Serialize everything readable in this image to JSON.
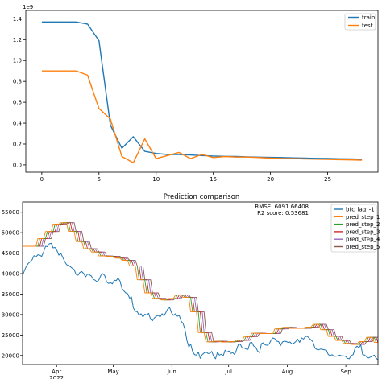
{
  "chart_data": [
    {
      "type": "line",
      "title": "",
      "xlabel": "",
      "ylabel": "",
      "offset_label": "1e9",
      "xlim": [
        -1.4,
        29.4
      ],
      "ylim": [
        -0.07,
        1.48
      ],
      "xticks": [
        0,
        5,
        10,
        15,
        20,
        25
      ],
      "xtick_labels": [
        "0",
        "5",
        "10",
        "15",
        "20",
        "25"
      ],
      "yticks": [
        0.0,
        0.2,
        0.4,
        0.6,
        0.8,
        1.0,
        1.2,
        1.4
      ],
      "ytick_labels": [
        "0.0",
        "0.2",
        "0.4",
        "0.6",
        "0.8",
        "1.0",
        "1.2",
        "1.4"
      ],
      "legend_position": "top-right",
      "grid": false,
      "series": [
        {
          "name": "train",
          "color": "#1f77b4",
          "x": [
            0,
            1,
            2,
            3,
            4,
            5,
            6,
            7,
            8,
            9,
            10,
            11,
            12,
            13,
            14,
            15,
            16,
            17,
            18,
            19,
            20,
            21,
            22,
            23,
            24,
            25,
            26,
            27,
            28
          ],
          "y": [
            1.37,
            1.37,
            1.37,
            1.37,
            1.35,
            1.19,
            0.38,
            0.16,
            0.27,
            0.13,
            0.11,
            0.1,
            0.1,
            0.095,
            0.09,
            0.085,
            0.082,
            0.08,
            0.077,
            0.074,
            0.072,
            0.07,
            0.067,
            0.065,
            0.063,
            0.061,
            0.059,
            0.057,
            0.055
          ]
        },
        {
          "name": "test",
          "color": "#ff7f0e",
          "x": [
            0,
            1,
            2,
            3,
            4,
            5,
            6,
            7,
            8,
            9,
            10,
            11,
            12,
            13,
            14,
            15,
            16,
            17,
            18,
            19,
            20,
            21,
            22,
            23,
            24,
            25,
            26,
            27,
            28
          ],
          "y": [
            0.9,
            0.9,
            0.9,
            0.9,
            0.86,
            0.54,
            0.44,
            0.08,
            0.02,
            0.25,
            0.06,
            0.09,
            0.12,
            0.06,
            0.1,
            0.07,
            0.08,
            0.075,
            0.075,
            0.07,
            0.065,
            0.062,
            0.06,
            0.057,
            0.055,
            0.053,
            0.05,
            0.048,
            0.045
          ]
        }
      ]
    },
    {
      "type": "line",
      "title": "Prediction comparison",
      "xlabel": "",
      "ylabel": "",
      "ylim": [
        17800,
        57500
      ],
      "yticks": [
        20000,
        25000,
        30000,
        35000,
        40000,
        45000,
        50000,
        55000
      ],
      "ytick_labels": [
        "20000",
        "25000",
        "30000",
        "35000",
        "40000",
        "45000",
        "50000",
        "55000"
      ],
      "xtick_labels": [
        "Apr\n2022",
        "May",
        "Jun",
        "Jul",
        "Aug",
        "Sep"
      ],
      "xtick_days": [
        18,
        48,
        79,
        109,
        140,
        171
      ],
      "x_range_days": [
        0,
        188
      ],
      "legend_position": "top-right",
      "grid": false,
      "annotation": [
        "RMSE: 6091.66408",
        "R2 score: 0.53681"
      ],
      "series": [
        {
          "name": "btc_lag_-1",
          "color": "#1f77b4",
          "y": [
            39500,
            40800,
            41800,
            42500,
            42900,
            43400,
            44400,
            44100,
            44600,
            44500,
            44200,
            45300,
            46700,
            46600,
            47300,
            47400,
            46300,
            46400,
            45600,
            44500,
            45000,
            44000,
            43000,
            42200,
            42000,
            41700,
            41300,
            41000,
            39800,
            39600,
            40300,
            40500,
            40000,
            39200,
            39900,
            39700,
            39400,
            38600,
            38400,
            38000,
            38500,
            39600,
            40000,
            39500,
            38000,
            37600,
            37800,
            37500,
            38400,
            38300,
            38900,
            38200,
            36400,
            35800,
            35300,
            35100,
            34000,
            34300,
            31600,
            30800,
            30700,
            29800,
            30200,
            29400,
            30100,
            29900,
            30300,
            28800,
            28500,
            29200,
            29600,
            29800,
            29400,
            30200,
            29700,
            30500,
            31400,
            31700,
            30400,
            29800,
            30200,
            29600,
            29800,
            28400,
            27800,
            26400,
            23700,
            22100,
            22800,
            21000,
            20200,
            20100,
            20800,
            19300,
            20200,
            20600,
            20900,
            20500,
            20500,
            21000,
            19800,
            19200,
            20800,
            20100,
            20300,
            19900,
            21300,
            20800,
            21100,
            20500,
            20700,
            20200,
            21400,
            22800,
            22700,
            21800,
            21800,
            21600,
            21500,
            23100,
            23200,
            22300,
            22000,
            21100,
            20700,
            22900,
            23100,
            22600,
            22500,
            22800,
            23700,
            24300,
            24100,
            23500,
            23400,
            22400,
            23300,
            23500,
            23400,
            23200,
            23300,
            22800,
            23000,
            23400,
            24000,
            23200,
            24300,
            24000,
            24600,
            24700,
            24200,
            23800,
            23300,
            21800,
            21500,
            21400,
            21600,
            21500,
            21400,
            21300,
            20200,
            20000,
            20200,
            19800,
            19800,
            19900,
            20100,
            19900,
            19900,
            19800,
            19300,
            19200,
            20000,
            20200,
            21700,
            22300,
            21900,
            22600,
            20200,
            20100,
            19700,
            19400,
            19600,
            19800,
            20100,
            19400,
            18900
          ]
        },
        {
          "name": "pred_step_1",
          "color": "#ff7f0e"
        },
        {
          "name": "pred_step_2",
          "color": "#2ca02c"
        },
        {
          "name": "pred_step_3",
          "color": "#d62728"
        },
        {
          "name": "pred_step_4",
          "color": "#9467bd"
        },
        {
          "name": "pred_step_5",
          "color": "#8c564b"
        }
      ]
    }
  ]
}
